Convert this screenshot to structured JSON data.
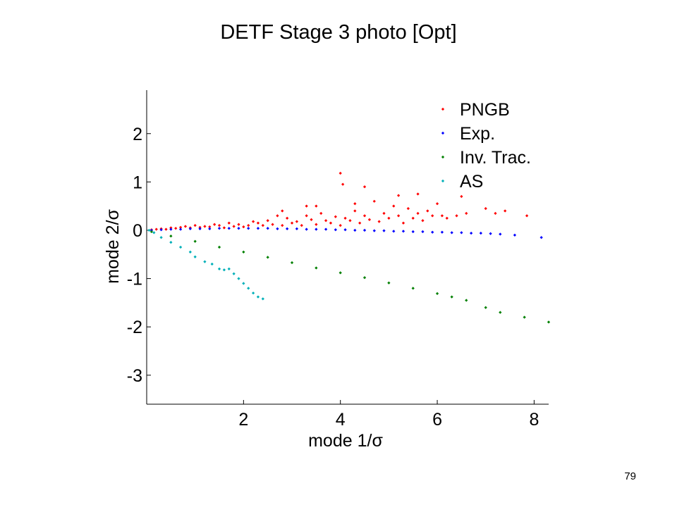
{
  "slide": {
    "title": "DETF Stage 3 photo [Opt]",
    "page_number": "79"
  },
  "chart_data": {
    "type": "scatter",
    "title": "",
    "xlabel": "mode 1/σ",
    "ylabel": "mode 2/σ",
    "xlim": [
      0,
      8.3
    ],
    "ylim": [
      -3.6,
      2.9
    ],
    "xticks": [
      2,
      4,
      6,
      8
    ],
    "yticks": [
      2,
      1,
      0,
      -1,
      -2,
      -3
    ],
    "xtick_labels": [
      "2",
      "4",
      "6",
      "8"
    ],
    "ytick_labels": [
      "2",
      "1",
      "0",
      "-1",
      "-2",
      "-3"
    ],
    "grid": false,
    "legend_position": "top-right",
    "series": [
      {
        "name": "PNGB",
        "color": "#ff0000",
        "points": [
          [
            0.1,
            0.01
          ],
          [
            0.2,
            0.02
          ],
          [
            0.3,
            0.03
          ],
          [
            0.4,
            0.02
          ],
          [
            0.5,
            0.05
          ],
          [
            0.6,
            0.04
          ],
          [
            0.7,
            0.06
          ],
          [
            0.8,
            0.08
          ],
          [
            0.9,
            0.05
          ],
          [
            1.0,
            0.1
          ],
          [
            1.1,
            0.06
          ],
          [
            1.2,
            0.08
          ],
          [
            1.3,
            0.07
          ],
          [
            1.4,
            0.12
          ],
          [
            1.5,
            0.1
          ],
          [
            1.6,
            0.05
          ],
          [
            1.7,
            0.15
          ],
          [
            1.8,
            0.08
          ],
          [
            1.9,
            0.12
          ],
          [
            2.0,
            0.07
          ],
          [
            2.1,
            0.1
          ],
          [
            2.2,
            0.18
          ],
          [
            2.3,
            0.15
          ],
          [
            2.4,
            0.1
          ],
          [
            2.5,
            0.2
          ],
          [
            2.6,
            0.12
          ],
          [
            2.7,
            0.3
          ],
          [
            2.8,
            0.1
          ],
          [
            2.9,
            0.25
          ],
          [
            3.0,
            0.15
          ],
          [
            3.1,
            0.18
          ],
          [
            3.2,
            0.1
          ],
          [
            3.3,
            0.3
          ],
          [
            3.4,
            0.22
          ],
          [
            3.5,
            0.12
          ],
          [
            3.6,
            0.35
          ],
          [
            3.7,
            0.2
          ],
          [
            3.8,
            0.15
          ],
          [
            3.9,
            0.28
          ],
          [
            4.0,
            0.1
          ],
          [
            4.1,
            0.25
          ],
          [
            4.2,
            0.2
          ],
          [
            4.3,
            0.4
          ],
          [
            4.4,
            0.15
          ],
          [
            4.5,
            0.3
          ],
          [
            4.6,
            0.22
          ],
          [
            4.7,
            0.6
          ],
          [
            4.8,
            0.18
          ],
          [
            4.9,
            0.35
          ],
          [
            5.0,
            0.25
          ],
          [
            5.1,
            0.5
          ],
          [
            5.2,
            0.3
          ],
          [
            5.3,
            0.15
          ],
          [
            5.4,
            0.45
          ],
          [
            5.5,
            0.25
          ],
          [
            5.6,
            0.35
          ],
          [
            5.7,
            0.2
          ],
          [
            5.8,
            0.4
          ],
          [
            5.9,
            0.3
          ],
          [
            6.0,
            0.55
          ],
          [
            6.1,
            0.3
          ],
          [
            6.2,
            0.25
          ],
          [
            6.4,
            0.3
          ],
          [
            6.6,
            0.35
          ],
          [
            7.0,
            0.45
          ],
          [
            7.2,
            0.35
          ],
          [
            7.4,
            0.4
          ],
          [
            7.85,
            0.3
          ],
          [
            3.5,
            0.5
          ],
          [
            4.5,
            0.9
          ],
          [
            4.0,
            1.18
          ],
          [
            4.05,
            0.95
          ],
          [
            5.2,
            0.72
          ],
          [
            5.6,
            0.75
          ],
          [
            6.5,
            0.7
          ],
          [
            3.3,
            0.5
          ],
          [
            2.8,
            0.4
          ],
          [
            4.3,
            0.55
          ]
        ]
      },
      {
        "name": "Exp.",
        "color": "#0000ff",
        "points": [
          [
            0.1,
            0.0
          ],
          [
            0.3,
            0.01
          ],
          [
            0.5,
            0.02
          ],
          [
            0.7,
            0.02
          ],
          [
            0.9,
            0.03
          ],
          [
            1.1,
            0.03
          ],
          [
            1.3,
            0.03
          ],
          [
            1.5,
            0.04
          ],
          [
            1.7,
            0.04
          ],
          [
            1.9,
            0.04
          ],
          [
            2.1,
            0.04
          ],
          [
            2.3,
            0.04
          ],
          [
            2.5,
            0.04
          ],
          [
            2.7,
            0.03
          ],
          [
            2.9,
            0.03
          ],
          [
            3.1,
            0.03
          ],
          [
            3.3,
            0.02
          ],
          [
            3.5,
            0.02
          ],
          [
            3.7,
            0.02
          ],
          [
            3.9,
            0.01
          ],
          [
            4.1,
            0.01
          ],
          [
            4.3,
            0.0
          ],
          [
            4.5,
            0.0
          ],
          [
            4.7,
            -0.01
          ],
          [
            4.9,
            -0.01
          ],
          [
            5.1,
            -0.02
          ],
          [
            5.3,
            -0.02
          ],
          [
            5.5,
            -0.03
          ],
          [
            5.7,
            -0.03
          ],
          [
            5.9,
            -0.04
          ],
          [
            6.1,
            -0.04
          ],
          [
            6.3,
            -0.05
          ],
          [
            6.5,
            -0.05
          ],
          [
            6.7,
            -0.06
          ],
          [
            6.9,
            -0.06
          ],
          [
            7.1,
            -0.07
          ],
          [
            7.3,
            -0.08
          ],
          [
            7.6,
            -0.1
          ],
          [
            8.15,
            -0.15
          ]
        ]
      },
      {
        "name": "Inv. Trac.",
        "color": "#008000",
        "points": [
          [
            0.1,
            -0.03
          ],
          [
            0.5,
            -0.12
          ],
          [
            1.0,
            -0.23
          ],
          [
            1.5,
            -0.35
          ],
          [
            2.0,
            -0.45
          ],
          [
            2.5,
            -0.56
          ],
          [
            3.0,
            -0.67
          ],
          [
            3.5,
            -0.78
          ],
          [
            4.0,
            -0.88
          ],
          [
            4.5,
            -0.98
          ],
          [
            5.0,
            -1.09
          ],
          [
            5.5,
            -1.2
          ],
          [
            6.0,
            -1.31
          ],
          [
            6.3,
            -1.38
          ],
          [
            6.6,
            -1.45
          ],
          [
            7.0,
            -1.6
          ],
          [
            7.3,
            -1.7
          ],
          [
            7.8,
            -1.8
          ],
          [
            8.3,
            -1.9
          ]
        ]
      },
      {
        "name": "AS",
        "color": "#00b0b8",
        "points": [
          [
            0.05,
            0.0
          ],
          [
            0.15,
            -0.05
          ],
          [
            0.3,
            -0.15
          ],
          [
            0.5,
            -0.25
          ],
          [
            0.7,
            -0.35
          ],
          [
            0.9,
            -0.45
          ],
          [
            1.0,
            -0.55
          ],
          [
            1.2,
            -0.65
          ],
          [
            1.35,
            -0.7
          ],
          [
            1.5,
            -0.8
          ],
          [
            1.6,
            -0.82
          ],
          [
            1.7,
            -0.8
          ],
          [
            1.8,
            -0.9
          ],
          [
            1.9,
            -1.0
          ],
          [
            2.0,
            -1.1
          ],
          [
            2.1,
            -1.2
          ],
          [
            2.2,
            -1.3
          ],
          [
            2.3,
            -1.38
          ],
          [
            2.4,
            -1.42
          ]
        ]
      }
    ]
  }
}
